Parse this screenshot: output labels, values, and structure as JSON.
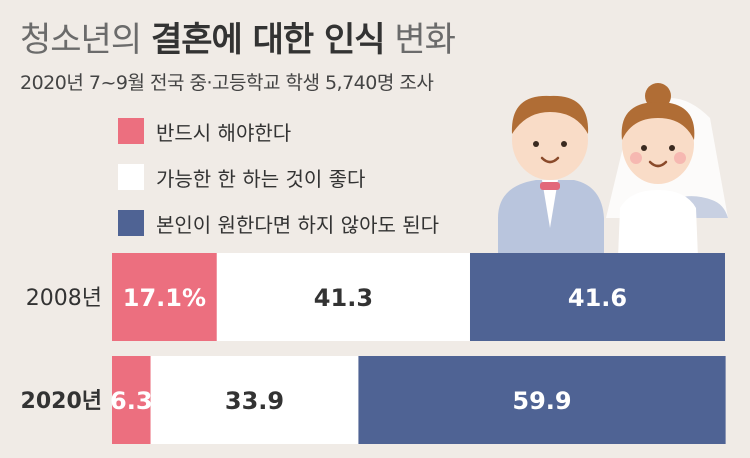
{
  "title": {
    "normal": "청소년의 ",
    "bold": "결혼에 대한 인식",
    "tail": " 변화"
  },
  "subtitle": "2020년 7~9월 전국 중·고등학교 학생 5,740명 조사",
  "colors": {
    "pink": "#ec6f7f",
    "white": "#ffffff",
    "navy": "#4f6394",
    "background": "#f0ebe6"
  },
  "legend": [
    {
      "label": "반드시 해야한다",
      "color": "#ec6f7f"
    },
    {
      "label": "가능한 한 하는 것이 좋다",
      "color": "#ffffff"
    },
    {
      "label": "본인이 원한다면 하지 않아도 된다",
      "color": "#4f6394"
    }
  ],
  "chart_data": {
    "type": "bar",
    "orientation": "horizontal",
    "stacked": true,
    "categories": [
      "2008년",
      "2020년"
    ],
    "series": [
      {
        "name": "반드시 해야한다",
        "values": [
          17.1,
          6.3
        ],
        "labels": [
          "17.1%",
          "6.3"
        ]
      },
      {
        "name": "가능한 한 하는 것이 좋다",
        "values": [
          41.3,
          33.9
        ],
        "labels": [
          "41.3",
          "33.9"
        ]
      },
      {
        "name": "본인이 원한다면 하지 않아도 된다",
        "values": [
          41.6,
          59.9
        ],
        "labels": [
          "41.6",
          "59.9"
        ]
      }
    ],
    "xlim": [
      0,
      100
    ],
    "grid": false,
    "legend_position": "top-left"
  }
}
